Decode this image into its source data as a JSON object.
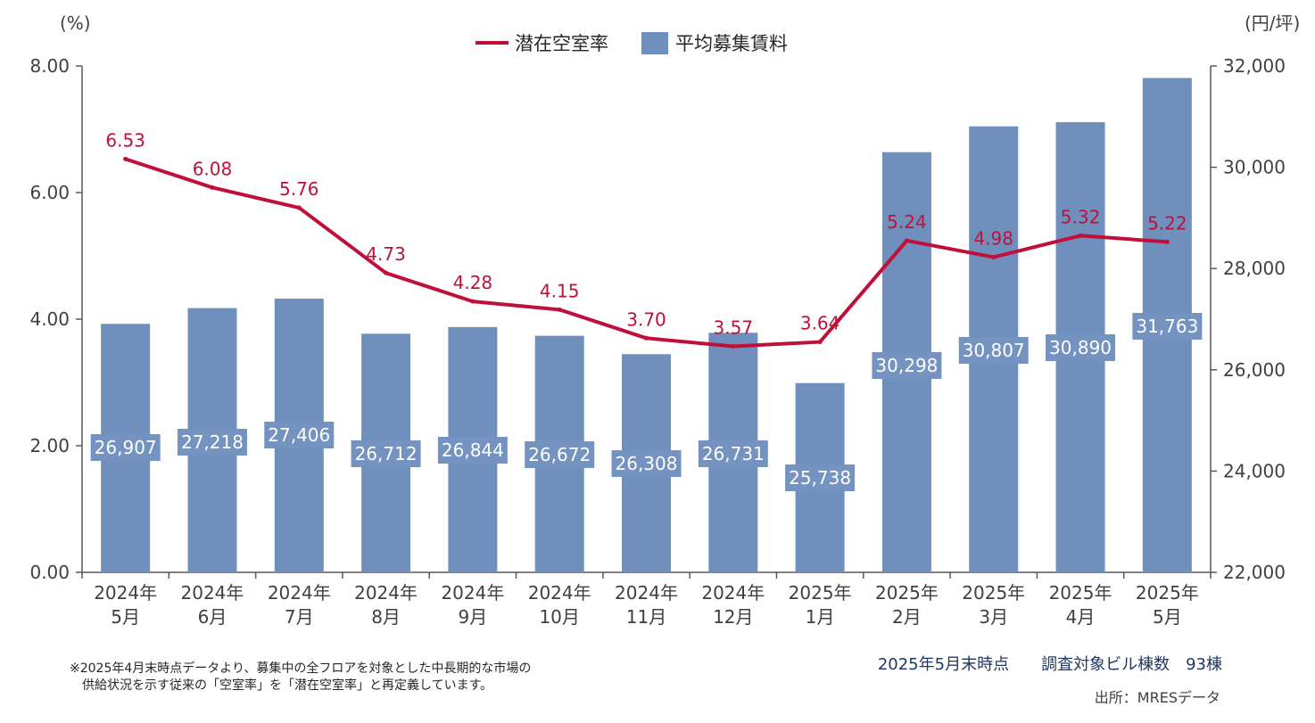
{
  "chart_data": {
    "type": "bar+line",
    "categories": [
      "2024年\n5月",
      "2024年\n6月",
      "2024年\n7月",
      "2024年\n8月",
      "2024年\n9月",
      "2024年\n10月",
      "2024年\n11月",
      "2024年\n12月",
      "2025年\n1月",
      "2025年\n2月",
      "2025年\n3月",
      "2025年\n4月",
      "2025年\n5月"
    ],
    "series": [
      {
        "name": "潜在空室率",
        "type": "line",
        "axis": "left",
        "color": "#c0103a",
        "values": [
          6.53,
          6.08,
          5.76,
          4.73,
          4.28,
          4.15,
          3.7,
          3.57,
          3.64,
          5.24,
          4.98,
          5.32,
          5.22
        ],
        "labels": [
          "6.53",
          "6.08",
          "5.76",
          "4.73",
          "4.28",
          "4.15",
          "3.70",
          "3.57",
          "3.64",
          "5.24",
          "4.98",
          "5.32",
          "5.22"
        ]
      },
      {
        "name": "平均募集賃料",
        "type": "bar",
        "axis": "right",
        "color": "#6f8fbc",
        "values": [
          26907,
          27218,
          27406,
          26712,
          26844,
          26672,
          26308,
          26731,
          25738,
          30298,
          30807,
          30890,
          31763
        ],
        "labels": [
          "26,907",
          "27,218",
          "27,406",
          "26,712",
          "26,844",
          "26,672",
          "26,308",
          "26,731",
          "25,738",
          "30,298",
          "30,807",
          "30,890",
          "31,763"
        ]
      }
    ],
    "y_left": {
      "unit": "(%)",
      "ylim": [
        0,
        8
      ],
      "ticks": [
        "0.00",
        "2.00",
        "4.00",
        "6.00",
        "8.00"
      ]
    },
    "y_right": {
      "unit": "(円/坪)",
      "ylim": [
        22000,
        32000
      ],
      "ticks": [
        "22,000",
        "24,000",
        "26,000",
        "28,000",
        "30,000",
        "32,000"
      ]
    },
    "legend": {
      "placement": "top-center"
    },
    "grid": false
  },
  "notes": {
    "footnote": "※2025年4月末時点データより、募集中の全フロアを対象とした中長期的な市場の\n　供給状況を示す従来の「空室率」を「潜在空室率」と再定義しています。",
    "survey": "2025年5月末時点　　調査対象ビル棟数　93棟",
    "source": "出所：MRESデータ"
  }
}
